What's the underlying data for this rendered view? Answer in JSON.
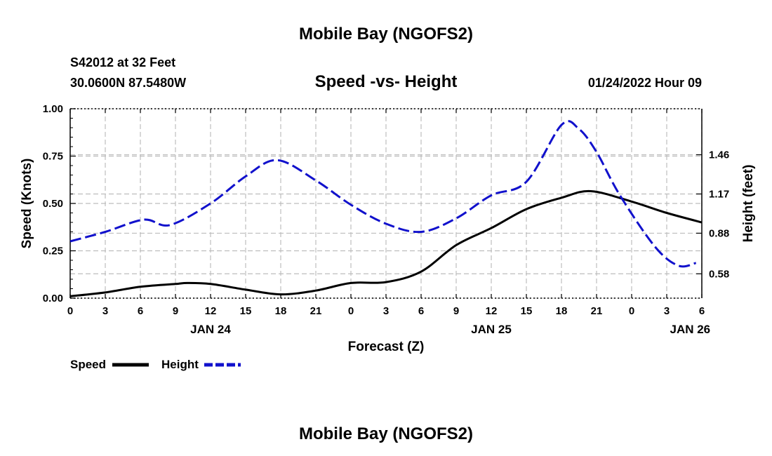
{
  "page": {
    "title": "Mobile Bay (NGOFS2)",
    "bottom_title": "Mobile Bay (NGOFS2)",
    "station": "S42012 at 32 Feet",
    "coords": "30.0600N  87.5480W",
    "date": "01/24/2022 Hour 09"
  },
  "chart_data": {
    "type": "line",
    "title": "Speed -vs- Height",
    "xlabel": "Forecast (Z)",
    "ylabel": "Speed (Knots)",
    "y2label": "Height (feet)",
    "x_unit": "hours since 01/24/2022 00Z",
    "xlim": [
      0,
      54
    ],
    "ylim": [
      0,
      1
    ],
    "y2lim": [
      0.4,
      1.8
    ],
    "x_ticks": [
      {
        "x": 0,
        "label": "0"
      },
      {
        "x": 3,
        "label": "3"
      },
      {
        "x": 6,
        "label": "6"
      },
      {
        "x": 9,
        "label": "9"
      },
      {
        "x": 12,
        "label": "12"
      },
      {
        "x": 15,
        "label": "15"
      },
      {
        "x": 18,
        "label": "18"
      },
      {
        "x": 21,
        "label": "21"
      },
      {
        "x": 24,
        "label": "0"
      },
      {
        "x": 27,
        "label": "3"
      },
      {
        "x": 30,
        "label": "6"
      },
      {
        "x": 33,
        "label": "9"
      },
      {
        "x": 36,
        "label": "12"
      },
      {
        "x": 39,
        "label": "15"
      },
      {
        "x": 42,
        "label": "18"
      },
      {
        "x": 45,
        "label": "21"
      },
      {
        "x": 48,
        "label": "0"
      },
      {
        "x": 51,
        "label": "3"
      },
      {
        "x": 54,
        "label": "6"
      }
    ],
    "day_labels": [
      {
        "x": 12,
        "label": "JAN 24"
      },
      {
        "x": 36,
        "label": "JAN 25"
      },
      {
        "x": 53,
        "label": "JAN 26"
      }
    ],
    "y_ticks": [
      {
        "v": 0,
        "label": "0.00"
      },
      {
        "v": 0.25,
        "label": "0.25"
      },
      {
        "v": 0.5,
        "label": "0.50"
      },
      {
        "v": 0.75,
        "label": "0.75"
      },
      {
        "v": 1,
        "label": "1.00"
      }
    ],
    "y2_ticks": [
      {
        "v": 0.58,
        "label": "0.58"
      },
      {
        "v": 0.88,
        "label": "0.88"
      },
      {
        "v": 1.17,
        "label": "1.17"
      },
      {
        "v": 1.46,
        "label": "1.46"
      }
    ],
    "grid": true,
    "legend_position": "bottom-left",
    "series": [
      {
        "name": "Speed",
        "axis": "left",
        "color": "#000000",
        "style": "solid",
        "points": [
          [
            0,
            0.01
          ],
          [
            3,
            0.03
          ],
          [
            6,
            0.06
          ],
          [
            9,
            0.075
          ],
          [
            10,
            0.08
          ],
          [
            12,
            0.075
          ],
          [
            15,
            0.045
          ],
          [
            18,
            0.02
          ],
          [
            21,
            0.04
          ],
          [
            24,
            0.08
          ],
          [
            27,
            0.085
          ],
          [
            30,
            0.14
          ],
          [
            33,
            0.28
          ],
          [
            36,
            0.37
          ],
          [
            39,
            0.47
          ],
          [
            42,
            0.53
          ],
          [
            44.5,
            0.565
          ],
          [
            48,
            0.51
          ],
          [
            51,
            0.45
          ],
          [
            54,
            0.4
          ]
        ]
      },
      {
        "name": "Height",
        "axis": "right",
        "color": "#1111cc",
        "style": "dashed",
        "points": [
          [
            0,
            0.82
          ],
          [
            3,
            0.89
          ],
          [
            6.3,
            0.98
          ],
          [
            8.5,
            0.94
          ],
          [
            12,
            1.1
          ],
          [
            15,
            1.3
          ],
          [
            17.7,
            1.42
          ],
          [
            21,
            1.27
          ],
          [
            24,
            1.09
          ],
          [
            27,
            0.95
          ],
          [
            30,
            0.89
          ],
          [
            33,
            0.99
          ],
          [
            36,
            1.16
          ],
          [
            39,
            1.26
          ],
          [
            42,
            1.68
          ],
          [
            43.5,
            1.65
          ],
          [
            45,
            1.48
          ],
          [
            47,
            1.16
          ],
          [
            50,
            0.78
          ],
          [
            52,
            0.64
          ],
          [
            53.5,
            0.66
          ]
        ]
      }
    ]
  }
}
